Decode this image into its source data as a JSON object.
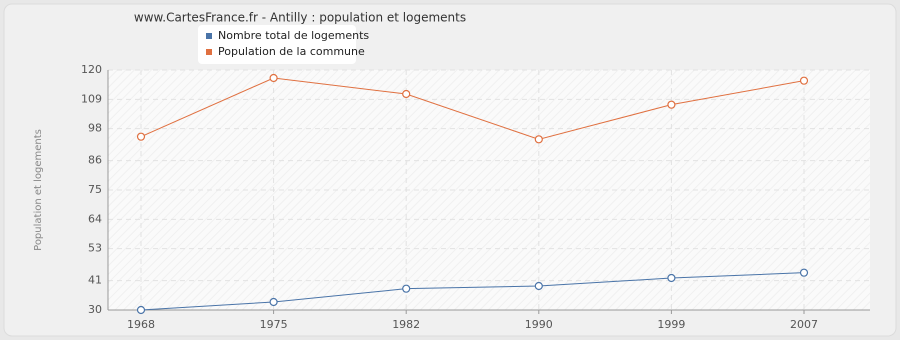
{
  "chart_data": {
    "type": "line",
    "title": "www.CartesFrance.fr - Antilly : population et logements",
    "y_label": "Population et logements",
    "categories": [
      "1968",
      "1975",
      "1982",
      "1990",
      "1999",
      "2007"
    ],
    "series": [
      {
        "name": "Nombre total de logements",
        "color": "#4a74a8",
        "values": [
          30,
          33,
          38,
          39,
          42,
          44
        ]
      },
      {
        "name": "Population de la commune",
        "color": "#e07040",
        "values": [
          95,
          117,
          111,
          94,
          107,
          116
        ]
      }
    ],
    "ylim": [
      30,
      120
    ],
    "yticks": [
      30,
      41,
      53,
      64,
      75,
      86,
      98,
      109,
      120
    ],
    "grid": true
  }
}
